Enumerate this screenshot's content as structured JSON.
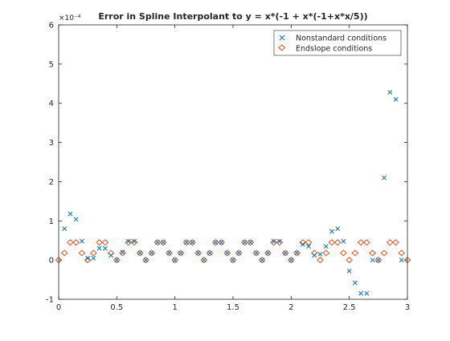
{
  "chart_data": {
    "type": "scatter",
    "title": "Error in Spline Interpolant to y = x*(-1 + x*(-1+x*x/5))",
    "xlim": [
      0,
      3
    ],
    "ylim": [
      -1,
      6
    ],
    "y_exponent_label": "×10⁻⁴",
    "x_ticks": [
      0,
      0.5,
      1,
      1.5,
      2,
      2.5,
      3
    ],
    "x_tick_labels": [
      "0",
      "0.5",
      "1",
      "1.5",
      "2",
      "2.5",
      "3"
    ],
    "y_ticks": [
      -1,
      0,
      1,
      2,
      3,
      4,
      5,
      6
    ],
    "y_tick_labels": [
      "-1",
      "0",
      "1",
      "2",
      "3",
      "4",
      "5",
      "6"
    ],
    "legend_position": "top-right",
    "colors": {
      "axis": "#262626",
      "nonstandard": "#0072bd",
      "endslope": "#d95319"
    },
    "series": [
      {
        "name": "Nonstandard conditions",
        "marker": "x",
        "color": "#0072bd",
        "x": [
          0.05,
          0.1,
          0.15,
          0.2,
          0.25,
          0.3,
          0.35,
          0.4,
          0.45,
          0.5,
          0.55,
          0.6,
          0.65,
          0.7,
          0.75,
          0.8,
          0.85,
          0.9,
          0.95,
          1.0,
          1.05,
          1.1,
          1.15,
          1.2,
          1.25,
          1.3,
          1.35,
          1.4,
          1.45,
          1.5,
          1.55,
          1.6,
          1.65,
          1.7,
          1.75,
          1.8,
          1.85,
          1.9,
          1.95,
          2.0,
          2.05,
          2.1,
          2.15,
          2.2,
          2.25,
          2.3,
          2.35,
          2.4,
          2.45,
          2.5,
          2.55,
          2.6,
          2.65,
          2.7,
          2.75,
          2.8,
          2.85,
          2.9,
          2.95
        ],
        "values": [
          0.8,
          1.18,
          1.04,
          0.48,
          0.05,
          0.05,
          0.3,
          0.3,
          0.12,
          0.0,
          0.2,
          0.48,
          0.48,
          0.18,
          0.0,
          0.18,
          0.45,
          0.45,
          0.18,
          0.0,
          0.18,
          0.45,
          0.45,
          0.18,
          0.0,
          0.18,
          0.45,
          0.45,
          0.18,
          0.0,
          0.18,
          0.45,
          0.45,
          0.18,
          0.0,
          0.18,
          0.48,
          0.48,
          0.18,
          0.0,
          0.18,
          0.4,
          0.35,
          0.12,
          0.15,
          0.35,
          0.73,
          0.8,
          0.48,
          -0.28,
          -0.58,
          -0.85,
          -0.85,
          0.0,
          0.0,
          2.1,
          4.28,
          4.1,
          0.0
        ]
      },
      {
        "name": "Endslope conditions",
        "marker": "diamond",
        "color": "#d95319",
        "x": [
          0.0,
          0.05,
          0.1,
          0.15,
          0.2,
          0.25,
          0.3,
          0.35,
          0.4,
          0.45,
          0.5,
          0.55,
          0.6,
          0.65,
          0.7,
          0.75,
          0.8,
          0.85,
          0.9,
          0.95,
          1.0,
          1.05,
          1.1,
          1.15,
          1.2,
          1.25,
          1.3,
          1.35,
          1.4,
          1.45,
          1.5,
          1.55,
          1.6,
          1.65,
          1.7,
          1.75,
          1.8,
          1.85,
          1.9,
          1.95,
          2.0,
          2.05,
          2.1,
          2.15,
          2.2,
          2.25,
          2.3,
          2.35,
          2.4,
          2.45,
          2.5,
          2.55,
          2.6,
          2.65,
          2.7,
          2.75,
          2.8,
          2.85,
          2.9,
          2.95,
          3.0
        ],
        "values": [
          0.0,
          0.18,
          0.45,
          0.45,
          0.18,
          0.0,
          0.18,
          0.45,
          0.45,
          0.18,
          0.0,
          0.18,
          0.45,
          0.45,
          0.18,
          0.0,
          0.18,
          0.45,
          0.45,
          0.18,
          0.0,
          0.18,
          0.45,
          0.45,
          0.18,
          0.0,
          0.18,
          0.45,
          0.45,
          0.18,
          0.0,
          0.18,
          0.45,
          0.45,
          0.18,
          0.0,
          0.18,
          0.45,
          0.45,
          0.18,
          0.0,
          0.18,
          0.45,
          0.45,
          0.18,
          0.0,
          0.18,
          0.45,
          0.45,
          0.18,
          0.0,
          0.18,
          0.45,
          0.45,
          0.18,
          0.0,
          0.18,
          0.45,
          0.45,
          0.18,
          0.0
        ]
      }
    ]
  }
}
